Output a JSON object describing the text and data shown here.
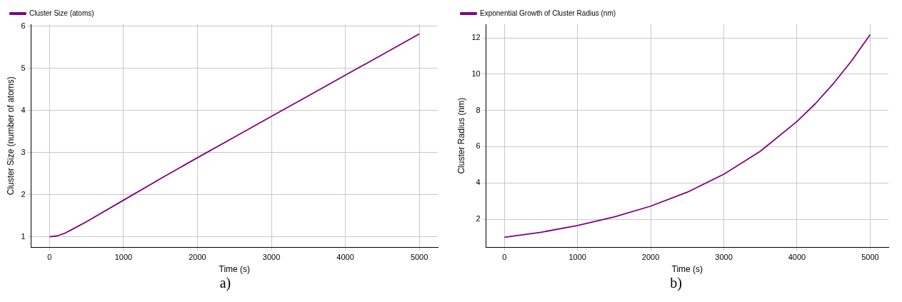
{
  "chart_data": [
    {
      "type": "line",
      "xlabel": "Time (s)",
      "ylabel": "Cluster Size (number of atoms)",
      "x": [
        0,
        100,
        200,
        300,
        500,
        1000,
        1500,
        2000,
        2500,
        3000,
        3500,
        4000,
        4500,
        5000
      ],
      "series": [
        {
          "name": "Cluster Size (atoms)",
          "color": "#800080",
          "values": [
            1.0,
            1.02,
            1.08,
            1.17,
            1.36,
            1.87,
            2.38,
            2.88,
            3.37,
            3.86,
            4.35,
            4.84,
            5.33,
            5.82
          ]
        }
      ],
      "xlim": [
        -250,
        5250
      ],
      "xticks": [
        0,
        1000,
        2000,
        3000,
        4000,
        5000
      ],
      "ylim": [
        0.75,
        6.05
      ],
      "yticks": [
        1,
        2,
        3,
        4,
        5,
        6
      ],
      "grid": true,
      "legend": "top left",
      "line_style": "solid",
      "marker": "none",
      "annotations": [
        "a)"
      ]
    },
    {
      "type": "line",
      "xlabel": "Time (s)",
      "ylabel": "Cluster Radius (nm)",
      "x": [
        0,
        500,
        1000,
        1500,
        2000,
        2500,
        3000,
        3500,
        4000,
        4250,
        4500,
        4750,
        5000
      ],
      "series": [
        {
          "name": "Exponential Growth of Cluster Radius (nm)",
          "color": "#800080",
          "values": [
            1.0,
            1.28,
            1.65,
            2.12,
            2.72,
            3.49,
            4.48,
            5.75,
            7.39,
            8.37,
            9.49,
            10.75,
            12.18
          ]
        }
      ],
      "xlim": [
        -250,
        5250
      ],
      "xticks": [
        0,
        1000,
        2000,
        3000,
        4000,
        5000
      ],
      "ylim": [
        0.45,
        12.75
      ],
      "yticks": [
        2,
        4,
        6,
        8,
        10,
        12
      ],
      "grid": true,
      "legend": "top left",
      "line_style": "solid",
      "marker": "none",
      "annotations": [
        "b)"
      ]
    }
  ]
}
